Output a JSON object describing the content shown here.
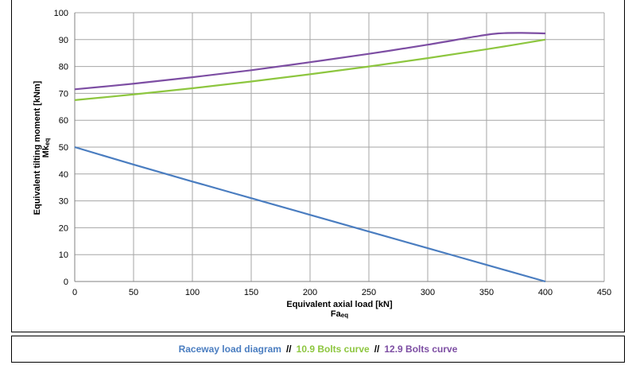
{
  "chart_data": {
    "type": "line",
    "xlabel": "Equivalent axial load [kN]",
    "xlabel_sub": "Fa",
    "xlabel_sub_index": "eq",
    "ylabel": "Equivalent tilting moment [kNm]",
    "ylabel_sub": "Mk",
    "ylabel_sub_index": "eq",
    "xlim": [
      0,
      450
    ],
    "ylim": [
      0,
      100
    ],
    "xticks": [
      0,
      50,
      100,
      150,
      200,
      250,
      300,
      350,
      400,
      450
    ],
    "yticks": [
      0,
      10,
      20,
      30,
      40,
      50,
      60,
      70,
      80,
      90,
      100
    ],
    "grid": true,
    "legend_position": "bottom",
    "series": [
      {
        "name": "Raceway load diagram",
        "color": "#4a7dc0",
        "x": [
          0,
          50,
          100,
          150,
          200,
          250,
          300,
          350,
          400
        ],
        "y": [
          50,
          43.5,
          37.2,
          31,
          24.8,
          18.6,
          12.4,
          6.2,
          0
        ]
      },
      {
        "name": "10.9 Bolts curve",
        "color": "#8dc63f",
        "x": [
          0,
          50,
          100,
          150,
          200,
          250,
          300,
          350,
          400
        ],
        "y": [
          67.5,
          69.6,
          71.9,
          74.4,
          77.1,
          80,
          83.1,
          86.4,
          90
        ]
      },
      {
        "name": "12.9 Bolts curve",
        "color": "#7d4ea3",
        "x": [
          0,
          50,
          100,
          150,
          200,
          250,
          300,
          340,
          360,
          380,
          400
        ],
        "y": [
          71.5,
          73.6,
          76,
          78.6,
          81.6,
          84.7,
          88.1,
          91.1,
          92.3,
          92.5,
          92.3
        ]
      }
    ]
  }
}
